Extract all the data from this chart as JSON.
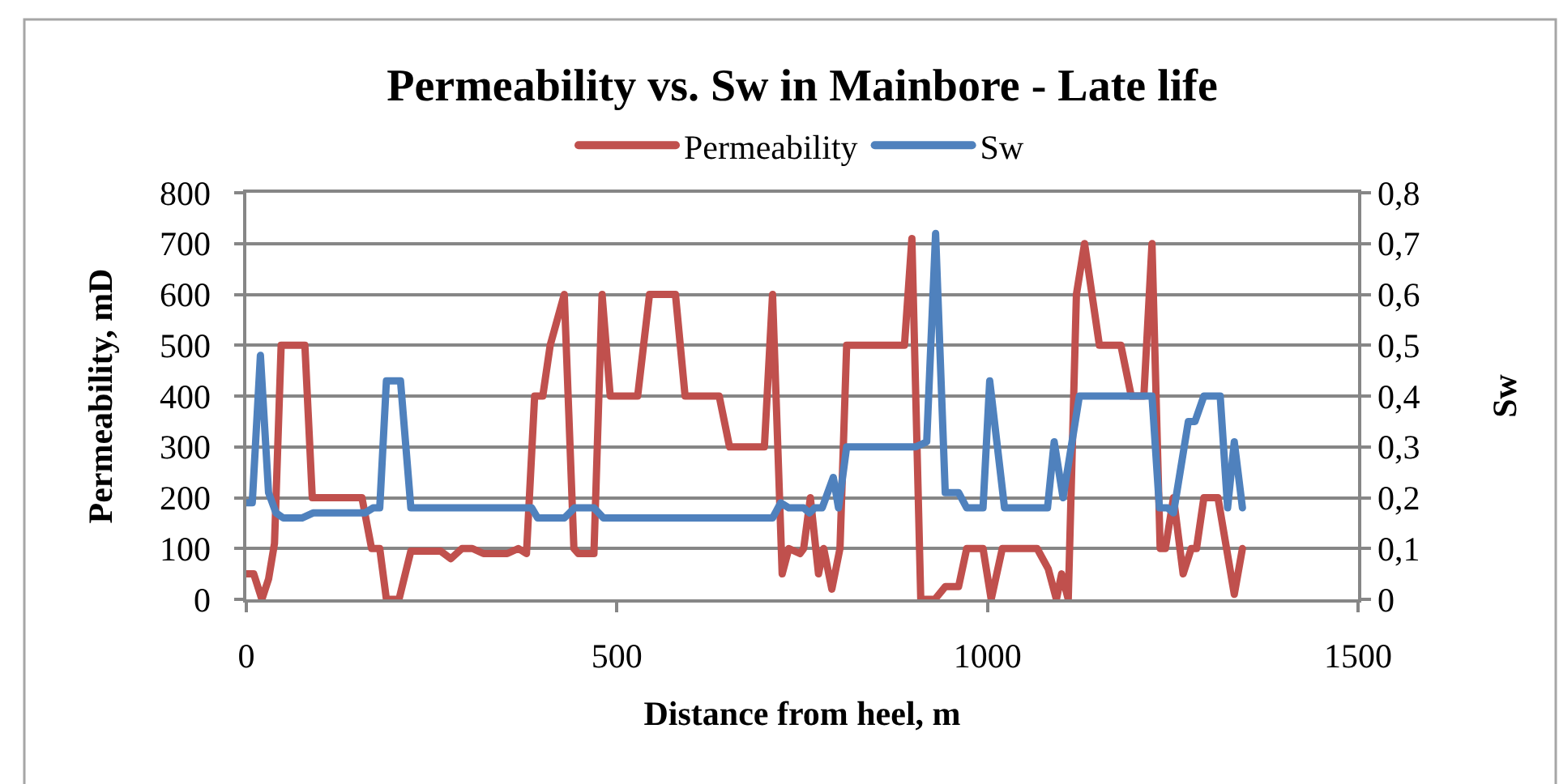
{
  "chart_data": {
    "type": "line",
    "title": "Permeability vs. Sw in Mainbore - Late life",
    "xlabel": "Distance from heel, m",
    "ylabel": "Permeability, mD",
    "y2label": "Sw",
    "xlim": [
      0,
      1500
    ],
    "xticks": [
      0,
      500,
      1000,
      1500
    ],
    "ylim": [
      0,
      800
    ],
    "yticks": [
      0,
      100,
      200,
      300,
      400,
      500,
      600,
      700,
      800
    ],
    "y2lim": [
      0,
      0.8
    ],
    "y2ticks": [
      0,
      {
        "value": 0.1,
        "label": "0,1"
      },
      {
        "value": 0.2,
        "label": "0,2"
      },
      {
        "value": 0.3,
        "label": "0,3"
      },
      {
        "value": 0.4,
        "label": "0,4"
      },
      {
        "value": 0.5,
        "label": "0,5"
      },
      {
        "value": 0.6,
        "label": "0,6"
      },
      {
        "value": 0.7,
        "label": "0,7"
      },
      {
        "value": 0.8,
        "label": "0,8"
      }
    ],
    "grid": "y",
    "legend": "top",
    "marker": "none",
    "line_style": "solid",
    "series": [
      {
        "name": "Permeability",
        "color": "#c0504d",
        "x": [
          0,
          10,
          21,
          30,
          38,
          47,
          79,
          89,
          156,
          169,
          180,
          189,
          206,
          222,
          262,
          276,
          291,
          305,
          320,
          352,
          367,
          378,
          389,
          400,
          410,
          429,
          442,
          448,
          469,
          480,
          491,
          528,
          544,
          579,
          592,
          638,
          652,
          699,
          710,
          723,
          732,
          747,
          752,
          761,
          772,
          779,
          790,
          801,
          810,
          888,
          898,
          910,
          929,
          943,
          961,
          972,
          994,
          1005,
          1020,
          1067,
          1082,
          1093,
          1100,
          1109,
          1120,
          1131,
          1151,
          1180,
          1194,
          1211,
          1222,
          1233,
          1240,
          1251,
          1264,
          1275,
          1282,
          1292,
          1311,
          1333,
          1344
        ],
        "values": [
          50,
          50,
          0,
          40,
          110,
          500,
          500,
          200,
          200,
          100,
          100,
          0,
          0,
          95,
          95,
          80,
          100,
          100,
          90,
          90,
          100,
          90,
          400,
          400,
          500,
          600,
          100,
          90,
          90,
          600,
          400,
          400,
          600,
          600,
          400,
          400,
          300,
          300,
          600,
          50,
          100,
          90,
          100,
          200,
          50,
          100,
          20,
          100,
          500,
          500,
          710,
          0,
          0,
          25,
          25,
          100,
          100,
          0,
          100,
          100,
          60,
          0,
          50,
          0,
          600,
          700,
          500,
          500,
          400,
          400,
          700,
          100,
          100,
          200,
          50,
          100,
          100,
          200,
          200,
          10,
          100
        ]
      },
      {
        "name": "Sw",
        "color": "#4f81bd",
        "axis": "y2",
        "x": [
          0,
          8,
          19,
          30,
          40,
          50,
          75,
          90,
          160,
          171,
          180,
          189,
          208,
          222,
          258,
          270,
          290,
          340,
          385,
          393,
          429,
          443,
          469,
          482,
          500,
          560,
          600,
          703,
          710,
          721,
          732,
          752,
          760,
          767,
          777,
          792,
          799,
          810,
          903,
          918,
          930,
          943,
          961,
          972,
          994,
          1003,
          1023,
          1071,
          1081,
          1090,
          1102,
          1124,
          1222,
          1232,
          1243,
          1251,
          1271,
          1280,
          1292,
          1314,
          1324,
          1333,
          1344
        ],
        "values": [
          0.19,
          0.19,
          0.48,
          0.21,
          0.17,
          0.16,
          0.16,
          0.17,
          0.17,
          0.18,
          0.18,
          0.43,
          0.43,
          0.18,
          0.18,
          0.18,
          0.18,
          0.18,
          0.18,
          0.16,
          0.16,
          0.18,
          0.18,
          0.16,
          0.16,
          0.16,
          0.16,
          0.16,
          0.16,
          0.19,
          0.18,
          0.18,
          0.17,
          0.18,
          0.18,
          0.24,
          0.18,
          0.3,
          0.3,
          0.31,
          0.72,
          0.21,
          0.21,
          0.18,
          0.18,
          0.43,
          0.18,
          0.18,
          0.18,
          0.31,
          0.2,
          0.4,
          0.4,
          0.18,
          0.18,
          0.17,
          0.35,
          0.35,
          0.4,
          0.4,
          0.18,
          0.31,
          0.18
        ]
      }
    ]
  }
}
